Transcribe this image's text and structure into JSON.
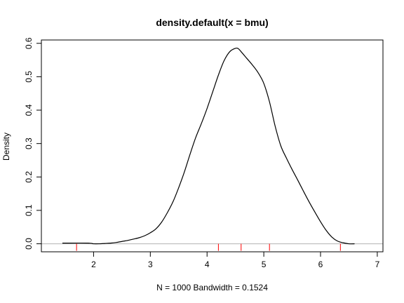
{
  "chart_data": {
    "type": "line",
    "title": "density.default(x = bmu)",
    "xlabel": "N = 1000   Bandwidth = 0.1524",
    "ylabel": "Density",
    "xlim": [
      1.08,
      7.1
    ],
    "ylim": [
      -0.024,
      0.61
    ],
    "x_ticks": [
      2,
      3,
      4,
      5,
      6,
      7
    ],
    "x_tick_labels": [
      "2",
      "3",
      "4",
      "5",
      "6",
      "7"
    ],
    "y_ticks": [
      0.0,
      0.1,
      0.2,
      0.3,
      0.4,
      0.5,
      0.6
    ],
    "y_tick_labels": [
      "0.0",
      "0.1",
      "0.2",
      "0.3",
      "0.4",
      "0.5",
      "0.6"
    ],
    "grid": false,
    "baseline": {
      "y": 0,
      "color": "#b3b3b3"
    },
    "series": [
      {
        "color": "#000000",
        "x": [
          1.45,
          1.9,
          2.0,
          2.1,
          2.2,
          2.3,
          2.4,
          2.5,
          2.6,
          2.7,
          2.8,
          2.9,
          3.0,
          3.1,
          3.2,
          3.3,
          3.4,
          3.5,
          3.6,
          3.7,
          3.8,
          3.9,
          4.0,
          4.1,
          4.2,
          4.3,
          4.4,
          4.5,
          4.55,
          4.6,
          4.7,
          4.8,
          4.9,
          5.0,
          5.1,
          5.2,
          5.3,
          5.4,
          5.5,
          5.6,
          5.7,
          5.8,
          5.9,
          6.0,
          6.1,
          6.2,
          6.3,
          6.4,
          6.5,
          6.6
        ],
        "y": [
          0.002,
          0.002,
          0.0,
          0.0,
          0.001,
          0.002,
          0.004,
          0.007,
          0.01,
          0.014,
          0.018,
          0.024,
          0.033,
          0.045,
          0.065,
          0.093,
          0.126,
          0.168,
          0.215,
          0.268,
          0.318,
          0.36,
          0.405,
          0.455,
          0.505,
          0.548,
          0.575,
          0.585,
          0.584,
          0.575,
          0.555,
          0.535,
          0.512,
          0.48,
          0.425,
          0.352,
          0.293,
          0.256,
          0.222,
          0.19,
          0.157,
          0.125,
          0.095,
          0.066,
          0.04,
          0.02,
          0.008,
          0.003,
          0.0,
          0.0
        ]
      }
    ],
    "rug": {
      "color": "#ff0000",
      "x": [
        1.7,
        4.2,
        4.6,
        5.1,
        6.35
      ]
    }
  }
}
